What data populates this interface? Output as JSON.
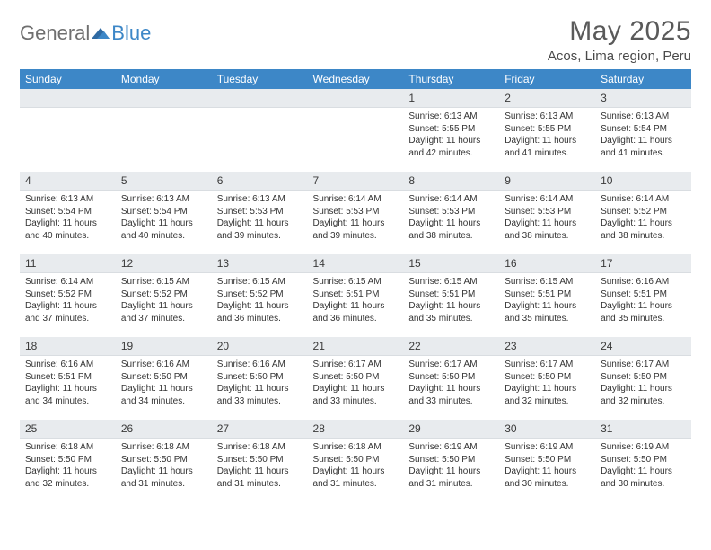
{
  "brand": {
    "part1": "General",
    "part2": "Blue"
  },
  "header": {
    "title": "May 2025",
    "location": "Acos, Lima region, Peru"
  },
  "colors": {
    "header_bg": "#3d87c7",
    "header_text": "#ffffff",
    "daynum_bg": "#e8ebee",
    "body_text": "#333333",
    "title_text": "#5a5a5a",
    "logo_gray": "#6f6f6f",
    "logo_blue": "#3d87c7",
    "page_bg": "#ffffff"
  },
  "calendar": {
    "type": "table",
    "columns": [
      "Sunday",
      "Monday",
      "Tuesday",
      "Wednesday",
      "Thursday",
      "Friday",
      "Saturday"
    ],
    "col_count": 7,
    "row_count": 5,
    "font_size_header": 12,
    "font_size_daynum": 12,
    "font_size_body": 10,
    "weeks": [
      [
        {
          "n": "",
          "sunrise": "",
          "sunset": "",
          "daylight": ""
        },
        {
          "n": "",
          "sunrise": "",
          "sunset": "",
          "daylight": ""
        },
        {
          "n": "",
          "sunrise": "",
          "sunset": "",
          "daylight": ""
        },
        {
          "n": "",
          "sunrise": "",
          "sunset": "",
          "daylight": ""
        },
        {
          "n": "1",
          "sunrise": "Sunrise: 6:13 AM",
          "sunset": "Sunset: 5:55 PM",
          "daylight": "Daylight: 11 hours and 42 minutes."
        },
        {
          "n": "2",
          "sunrise": "Sunrise: 6:13 AM",
          "sunset": "Sunset: 5:55 PM",
          "daylight": "Daylight: 11 hours and 41 minutes."
        },
        {
          "n": "3",
          "sunrise": "Sunrise: 6:13 AM",
          "sunset": "Sunset: 5:54 PM",
          "daylight": "Daylight: 11 hours and 41 minutes."
        }
      ],
      [
        {
          "n": "4",
          "sunrise": "Sunrise: 6:13 AM",
          "sunset": "Sunset: 5:54 PM",
          "daylight": "Daylight: 11 hours and 40 minutes."
        },
        {
          "n": "5",
          "sunrise": "Sunrise: 6:13 AM",
          "sunset": "Sunset: 5:54 PM",
          "daylight": "Daylight: 11 hours and 40 minutes."
        },
        {
          "n": "6",
          "sunrise": "Sunrise: 6:13 AM",
          "sunset": "Sunset: 5:53 PM",
          "daylight": "Daylight: 11 hours and 39 minutes."
        },
        {
          "n": "7",
          "sunrise": "Sunrise: 6:14 AM",
          "sunset": "Sunset: 5:53 PM",
          "daylight": "Daylight: 11 hours and 39 minutes."
        },
        {
          "n": "8",
          "sunrise": "Sunrise: 6:14 AM",
          "sunset": "Sunset: 5:53 PM",
          "daylight": "Daylight: 11 hours and 38 minutes."
        },
        {
          "n": "9",
          "sunrise": "Sunrise: 6:14 AM",
          "sunset": "Sunset: 5:53 PM",
          "daylight": "Daylight: 11 hours and 38 minutes."
        },
        {
          "n": "10",
          "sunrise": "Sunrise: 6:14 AM",
          "sunset": "Sunset: 5:52 PM",
          "daylight": "Daylight: 11 hours and 38 minutes."
        }
      ],
      [
        {
          "n": "11",
          "sunrise": "Sunrise: 6:14 AM",
          "sunset": "Sunset: 5:52 PM",
          "daylight": "Daylight: 11 hours and 37 minutes."
        },
        {
          "n": "12",
          "sunrise": "Sunrise: 6:15 AM",
          "sunset": "Sunset: 5:52 PM",
          "daylight": "Daylight: 11 hours and 37 minutes."
        },
        {
          "n": "13",
          "sunrise": "Sunrise: 6:15 AM",
          "sunset": "Sunset: 5:52 PM",
          "daylight": "Daylight: 11 hours and 36 minutes."
        },
        {
          "n": "14",
          "sunrise": "Sunrise: 6:15 AM",
          "sunset": "Sunset: 5:51 PM",
          "daylight": "Daylight: 11 hours and 36 minutes."
        },
        {
          "n": "15",
          "sunrise": "Sunrise: 6:15 AM",
          "sunset": "Sunset: 5:51 PM",
          "daylight": "Daylight: 11 hours and 35 minutes."
        },
        {
          "n": "16",
          "sunrise": "Sunrise: 6:15 AM",
          "sunset": "Sunset: 5:51 PM",
          "daylight": "Daylight: 11 hours and 35 minutes."
        },
        {
          "n": "17",
          "sunrise": "Sunrise: 6:16 AM",
          "sunset": "Sunset: 5:51 PM",
          "daylight": "Daylight: 11 hours and 35 minutes."
        }
      ],
      [
        {
          "n": "18",
          "sunrise": "Sunrise: 6:16 AM",
          "sunset": "Sunset: 5:51 PM",
          "daylight": "Daylight: 11 hours and 34 minutes."
        },
        {
          "n": "19",
          "sunrise": "Sunrise: 6:16 AM",
          "sunset": "Sunset: 5:50 PM",
          "daylight": "Daylight: 11 hours and 34 minutes."
        },
        {
          "n": "20",
          "sunrise": "Sunrise: 6:16 AM",
          "sunset": "Sunset: 5:50 PM",
          "daylight": "Daylight: 11 hours and 33 minutes."
        },
        {
          "n": "21",
          "sunrise": "Sunrise: 6:17 AM",
          "sunset": "Sunset: 5:50 PM",
          "daylight": "Daylight: 11 hours and 33 minutes."
        },
        {
          "n": "22",
          "sunrise": "Sunrise: 6:17 AM",
          "sunset": "Sunset: 5:50 PM",
          "daylight": "Daylight: 11 hours and 33 minutes."
        },
        {
          "n": "23",
          "sunrise": "Sunrise: 6:17 AM",
          "sunset": "Sunset: 5:50 PM",
          "daylight": "Daylight: 11 hours and 32 minutes."
        },
        {
          "n": "24",
          "sunrise": "Sunrise: 6:17 AM",
          "sunset": "Sunset: 5:50 PM",
          "daylight": "Daylight: 11 hours and 32 minutes."
        }
      ],
      [
        {
          "n": "25",
          "sunrise": "Sunrise: 6:18 AM",
          "sunset": "Sunset: 5:50 PM",
          "daylight": "Daylight: 11 hours and 32 minutes."
        },
        {
          "n": "26",
          "sunrise": "Sunrise: 6:18 AM",
          "sunset": "Sunset: 5:50 PM",
          "daylight": "Daylight: 11 hours and 31 minutes."
        },
        {
          "n": "27",
          "sunrise": "Sunrise: 6:18 AM",
          "sunset": "Sunset: 5:50 PM",
          "daylight": "Daylight: 11 hours and 31 minutes."
        },
        {
          "n": "28",
          "sunrise": "Sunrise: 6:18 AM",
          "sunset": "Sunset: 5:50 PM",
          "daylight": "Daylight: 11 hours and 31 minutes."
        },
        {
          "n": "29",
          "sunrise": "Sunrise: 6:19 AM",
          "sunset": "Sunset: 5:50 PM",
          "daylight": "Daylight: 11 hours and 31 minutes."
        },
        {
          "n": "30",
          "sunrise": "Sunrise: 6:19 AM",
          "sunset": "Sunset: 5:50 PM",
          "daylight": "Daylight: 11 hours and 30 minutes."
        },
        {
          "n": "31",
          "sunrise": "Sunrise: 6:19 AM",
          "sunset": "Sunset: 5:50 PM",
          "daylight": "Daylight: 11 hours and 30 minutes."
        }
      ]
    ]
  }
}
